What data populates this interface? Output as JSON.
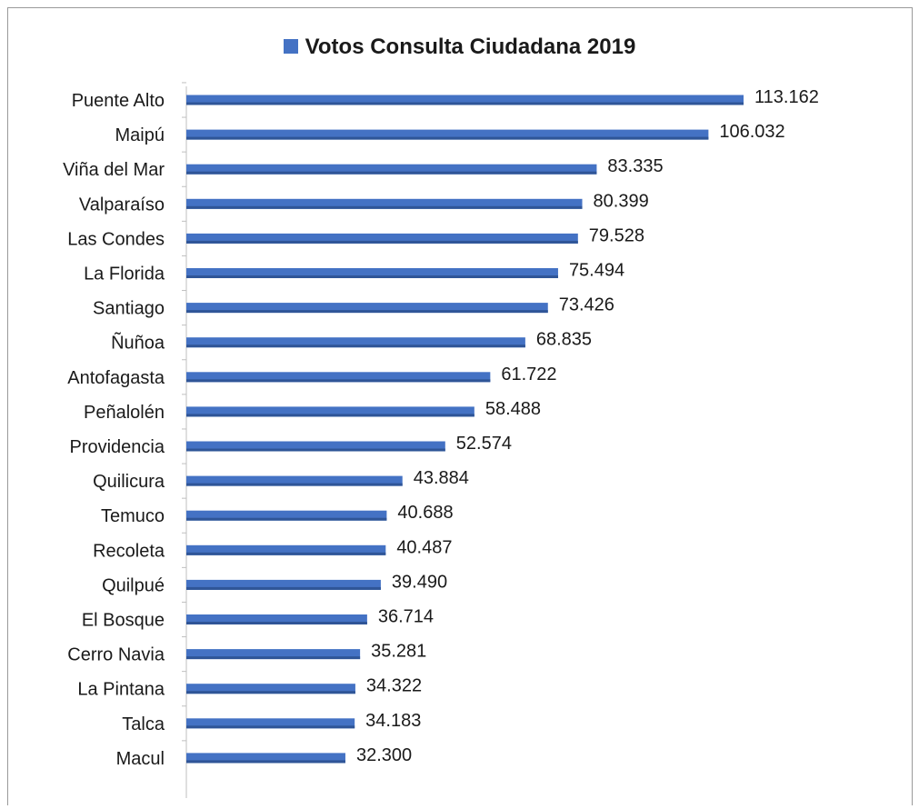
{
  "chart_data": {
    "type": "bar",
    "orientation": "horizontal",
    "title": "",
    "legend": {
      "label": "Votos Consulta Ciudadana 2019",
      "position": "top",
      "color": "#4472c4"
    },
    "bar_color": "#4472c4",
    "grid": false,
    "xlim": [
      0,
      120000
    ],
    "categories": [
      "Puente Alto",
      "Maipú",
      "Viña del Mar",
      "Valparaíso",
      "Las Condes",
      "La Florida",
      "Santiago",
      "Ñuñoa",
      "Antofagasta",
      "Peñalolén",
      "Providencia",
      "Quilicura",
      "Temuco",
      "Recoleta",
      "Quilpué",
      "El Bosque",
      "Cerro Navia",
      "La Pintana",
      "Talca",
      "Macul"
    ],
    "values": [
      113162,
      106032,
      83335,
      80399,
      79528,
      75494,
      73426,
      68835,
      61722,
      58488,
      52574,
      43884,
      40688,
      40487,
      39490,
      36714,
      35281,
      34322,
      34183,
      32300
    ],
    "labels": [
      "113.162",
      "106.032",
      "83.335",
      "80.399",
      "79.528",
      "75.494",
      "73.426",
      "68.835",
      "61.722",
      "58.488",
      "52.574",
      "43.884",
      "40.688",
      "40.487",
      "39.490",
      "36.714",
      "35.281",
      "34.322",
      "34.183",
      "32.300"
    ]
  }
}
